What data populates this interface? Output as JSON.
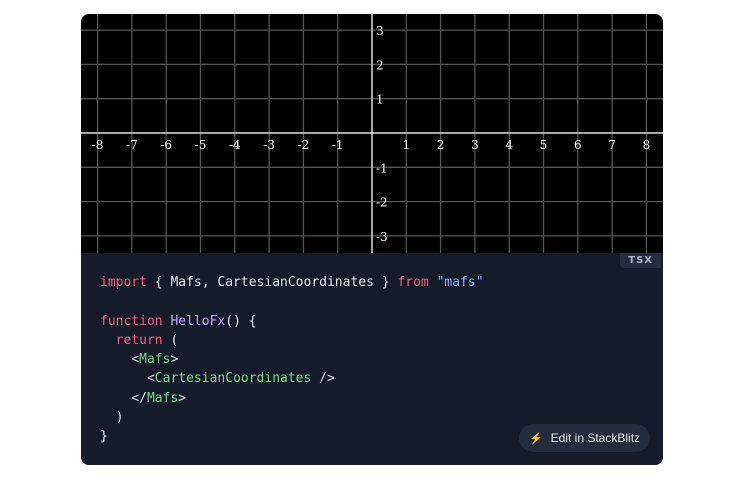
{
  "plot": {
    "x_ticks": [
      "-8",
      "-7",
      "-6",
      "-5",
      "-4",
      "-3",
      "-2",
      "-1",
      "1",
      "2",
      "3",
      "4",
      "5",
      "6",
      "7",
      "8"
    ],
    "y_ticks": [
      "3",
      "2",
      "1",
      "-1",
      "-2",
      "-3"
    ],
    "x_range": [
      -8.5,
      8.5
    ],
    "y_range": [
      -3.5,
      3.5
    ],
    "grid": true,
    "background": "#000000"
  },
  "code": {
    "language": "TSX",
    "lines": [
      [
        {
          "t": "import",
          "c": "kw"
        },
        {
          "t": " { Mafs, CartesianCoordinates } "
        },
        {
          "t": "from",
          "c": "kw"
        },
        {
          "t": " "
        },
        {
          "t": "\"mafs\"",
          "c": "str"
        }
      ],
      [],
      [
        {
          "t": "function",
          "c": "kw"
        },
        {
          "t": " "
        },
        {
          "t": "HelloFx",
          "c": "fn"
        },
        {
          "t": "() {"
        }
      ],
      [
        {
          "t": "  "
        },
        {
          "t": "return",
          "c": "kw"
        },
        {
          "t": " ("
        }
      ],
      [
        {
          "t": "    <"
        },
        {
          "t": "Mafs",
          "c": "tag"
        },
        {
          "t": ">"
        }
      ],
      [
        {
          "t": "      <"
        },
        {
          "t": "CartesianCoordinates",
          "c": "tag"
        },
        {
          "t": " />"
        }
      ],
      [
        {
          "t": "    </"
        },
        {
          "t": "Mafs",
          "c": "tag"
        },
        {
          "t": ">"
        }
      ],
      [
        {
          "t": "  )"
        }
      ],
      [
        {
          "t": "}"
        }
      ]
    ]
  },
  "edit_button": {
    "label": "Edit in StackBlitz",
    "icon": "lightning-bolt-icon"
  }
}
